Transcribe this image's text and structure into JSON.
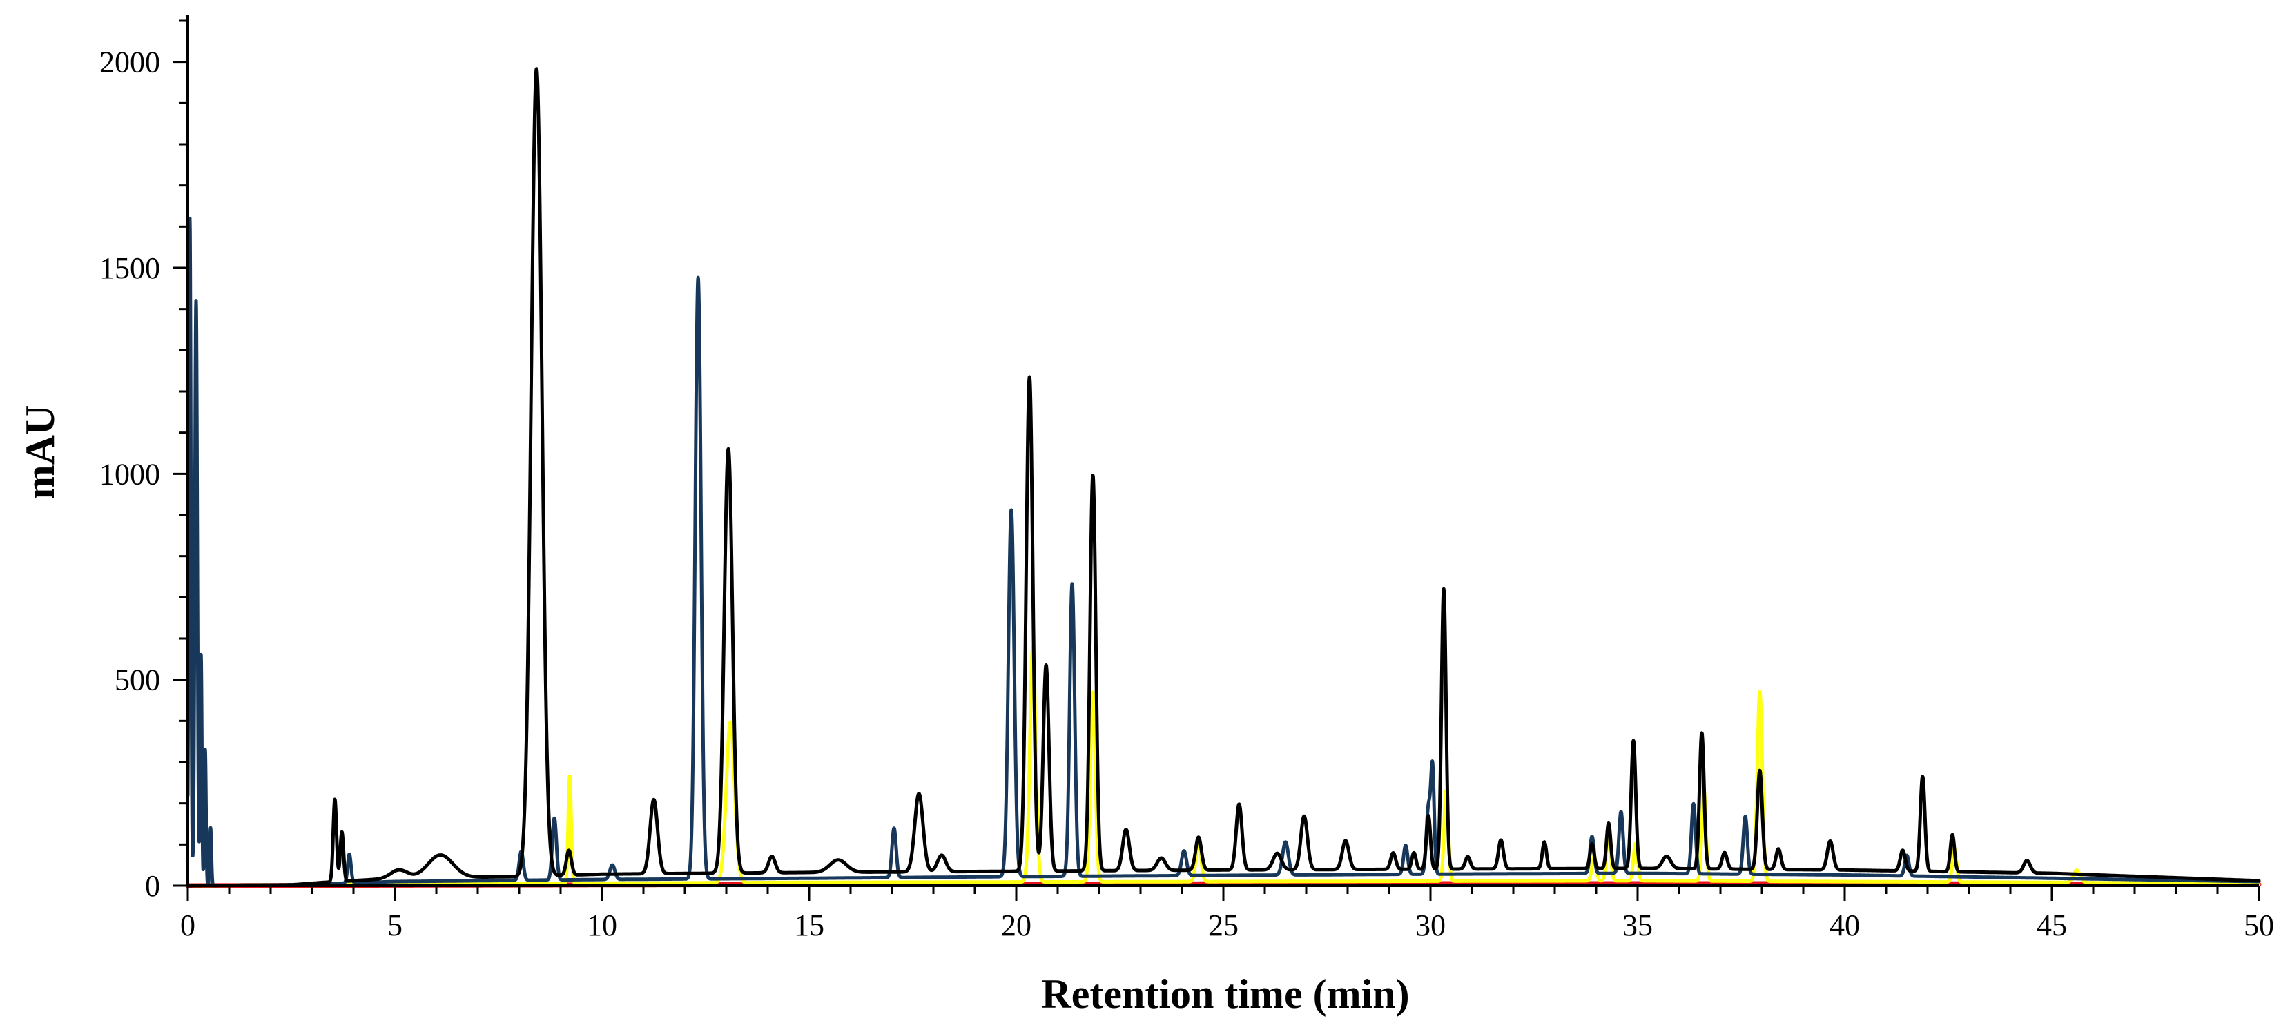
{
  "chart_data": {
    "type": "line",
    "title": "",
    "xlabel": "Retention time (min)",
    "ylabel": "mAU",
    "xlim": [
      0,
      50
    ],
    "ylim": [
      0,
      2100
    ],
    "xticks": [
      0,
      5,
      10,
      15,
      20,
      25,
      30,
      35,
      40,
      45,
      50
    ],
    "yticks": [
      0,
      500,
      1000,
      1500,
      2000
    ],
    "grid": false,
    "legend": "none",
    "baseline_defaults": {
      "black": 20,
      "navy": 10,
      "yellow": 6,
      "red": 2
    },
    "series": [
      {
        "color": "#000000",
        "baseline": [
          [
            0,
            0
          ],
          [
            2.5,
            2
          ],
          [
            3.3,
            8
          ],
          [
            5,
            18
          ],
          [
            8,
            22
          ],
          [
            10,
            28
          ],
          [
            15,
            32
          ],
          [
            20,
            35
          ],
          [
            25,
            38
          ],
          [
            30,
            40
          ],
          [
            35,
            42
          ],
          [
            40,
            38
          ],
          [
            45,
            30
          ],
          [
            50,
            12
          ]
        ],
        "peaks": [
          [
            3.55,
            200,
            0.04
          ],
          [
            3.72,
            120,
            0.04
          ],
          [
            5.1,
            20,
            0.2
          ],
          [
            6.1,
            55,
            0.3
          ],
          [
            8.42,
            1960,
            0.13
          ],
          [
            9.2,
            60,
            0.06
          ],
          [
            11.25,
            180,
            0.09
          ],
          [
            13.05,
            1030,
            0.1
          ],
          [
            14.1,
            40,
            0.08
          ],
          [
            15.7,
            30,
            0.2
          ],
          [
            17.65,
            190,
            0.1
          ],
          [
            18.2,
            40,
            0.1
          ],
          [
            20.32,
            1200,
            0.08
          ],
          [
            20.72,
            500,
            0.07
          ],
          [
            21.85,
            960,
            0.07
          ],
          [
            22.65,
            100,
            0.08
          ],
          [
            23.5,
            30,
            0.1
          ],
          [
            24.4,
            80,
            0.07
          ],
          [
            25.38,
            160,
            0.07
          ],
          [
            26.3,
            40,
            0.1
          ],
          [
            26.95,
            130,
            0.08
          ],
          [
            27.95,
            70,
            0.08
          ],
          [
            29.1,
            40,
            0.06
          ],
          [
            29.6,
            40,
            0.05
          ],
          [
            29.95,
            130,
            0.05
          ],
          [
            30.32,
            680,
            0.055
          ],
          [
            30.9,
            30,
            0.06
          ],
          [
            31.7,
            70,
            0.06
          ],
          [
            32.75,
            65,
            0.05
          ],
          [
            33.9,
            60,
            0.05
          ],
          [
            34.3,
            110,
            0.05
          ],
          [
            34.9,
            310,
            0.055
          ],
          [
            35.7,
            30,
            0.1
          ],
          [
            36.55,
            330,
            0.055
          ],
          [
            37.1,
            40,
            0.06
          ],
          [
            37.95,
            240,
            0.06
          ],
          [
            38.4,
            50,
            0.06
          ],
          [
            39.65,
            70,
            0.07
          ],
          [
            41.4,
            50,
            0.06
          ],
          [
            41.88,
            230,
            0.055
          ],
          [
            42.6,
            90,
            0.05
          ],
          [
            44.4,
            30,
            0.08
          ]
        ]
      },
      {
        "color": "#17385a",
        "baseline": [
          [
            0,
            0
          ],
          [
            2.5,
            2
          ],
          [
            5,
            10
          ],
          [
            10,
            15
          ],
          [
            15,
            18
          ],
          [
            20,
            22
          ],
          [
            25,
            25
          ],
          [
            30,
            28
          ],
          [
            35,
            30
          ],
          [
            40,
            26
          ],
          [
            45,
            18
          ],
          [
            50,
            10
          ]
        ],
        "peaks": [
          [
            0.05,
            1620,
            0.025
          ],
          [
            0.2,
            1420,
            0.03
          ],
          [
            0.32,
            560,
            0.02
          ],
          [
            0.42,
            330,
            0.02
          ],
          [
            0.55,
            140,
            0.02
          ],
          [
            3.9,
            70,
            0.04
          ],
          [
            8.05,
            70,
            0.05
          ],
          [
            8.85,
            150,
            0.05
          ],
          [
            10.25,
            35,
            0.06
          ],
          [
            12.32,
            1460,
            0.07
          ],
          [
            17.05,
            120,
            0.05
          ],
          [
            19.88,
            890,
            0.07
          ],
          [
            21.35,
            710,
            0.06
          ],
          [
            24.05,
            60,
            0.06
          ],
          [
            26.5,
            80,
            0.07
          ],
          [
            29.4,
            70,
            0.05
          ],
          [
            29.95,
            160,
            0.05
          ],
          [
            30.05,
            250,
            0.04
          ],
          [
            33.9,
            90,
            0.05
          ],
          [
            34.6,
            150,
            0.05
          ],
          [
            36.35,
            170,
            0.05
          ],
          [
            37.6,
            140,
            0.05
          ],
          [
            41.5,
            50,
            0.05
          ]
        ]
      },
      {
        "color": "#ffff10",
        "baseline": [
          [
            0,
            0
          ],
          [
            5,
            4
          ],
          [
            15,
            8
          ],
          [
            25,
            10
          ],
          [
            35,
            12
          ],
          [
            45,
            8
          ],
          [
            50,
            4
          ]
        ],
        "peaks": [
          [
            9.22,
            260,
            0.035
          ],
          [
            13.1,
            390,
            0.1
          ],
          [
            20.4,
            570,
            0.07
          ],
          [
            21.85,
            460,
            0.06
          ],
          [
            24.4,
            100,
            0.06
          ],
          [
            30.38,
            220,
            0.05
          ],
          [
            33.95,
            60,
            0.05
          ],
          [
            34.3,
            120,
            0.05
          ],
          [
            34.95,
            90,
            0.05
          ],
          [
            36.6,
            220,
            0.05
          ],
          [
            37.95,
            460,
            0.06
          ],
          [
            42.65,
            80,
            0.05
          ],
          [
            45.6,
            30,
            0.08
          ]
        ]
      },
      {
        "color": "#e8141b",
        "baseline": [
          [
            0,
            0
          ],
          [
            10,
            2
          ],
          [
            20,
            4
          ],
          [
            30,
            5
          ],
          [
            40,
            5
          ],
          [
            50,
            3
          ]
        ],
        "peaks": []
      }
    ]
  }
}
